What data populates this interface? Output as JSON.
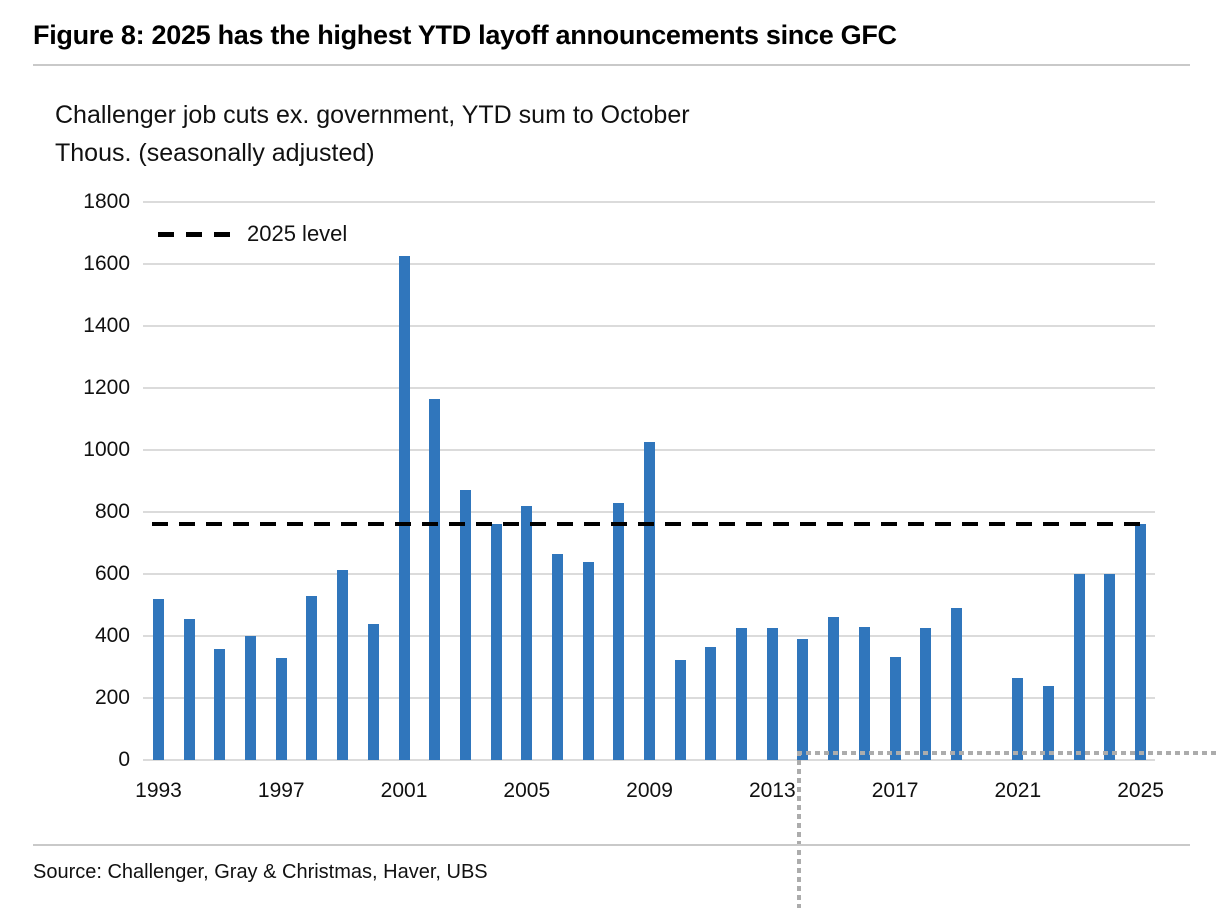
{
  "figure": {
    "title": "Figure 8: 2025 has the highest YTD layoff announcements since GFC",
    "subtitle_line1": "Challenger job cuts ex. government, YTD sum to October",
    "subtitle_line2": "Thous. (seasonally adjusted)",
    "source": "Source: Challenger, Gray & Christmas, Haver, UBS"
  },
  "legend": {
    "label": "2025 level"
  },
  "colors": {
    "bar": "#3076bc",
    "gridline": "#dbdbdb",
    "rule": "#c9c9c9",
    "reference_line": "#000000",
    "crosshair_artifact": "#acacac"
  },
  "chart_data": {
    "type": "bar",
    "title": "Figure 8: 2025 has the highest YTD layoff announcements since GFC",
    "subtitle": "Challenger job cuts ex. government, YTD sum to October",
    "ylabel": "Thous. (seasonally adjusted)",
    "categories": [
      1993,
      1994,
      1995,
      1996,
      1997,
      1998,
      1999,
      2000,
      2001,
      2002,
      2003,
      2004,
      2005,
      2006,
      2007,
      2008,
      2009,
      2010,
      2011,
      2012,
      2013,
      2014,
      2015,
      2016,
      2017,
      2018,
      2019,
      2020,
      2021,
      2022,
      2023,
      2024,
      2025
    ],
    "values": [
      520,
      455,
      357,
      400,
      330,
      530,
      612,
      440,
      1625,
      1163,
      872,
      762,
      818,
      665,
      638,
      830,
      1025,
      324,
      365,
      427,
      425,
      390,
      461,
      430,
      331,
      427,
      489,
      null,
      266,
      240,
      601,
      600,
      762
    ],
    "x_tick_labels": [
      "1993",
      "1997",
      "2001",
      "2005",
      "2009",
      "2013",
      "2017",
      "2021",
      "2025"
    ],
    "x_tick_years": [
      1993,
      1997,
      2001,
      2005,
      2009,
      2013,
      2017,
      2021,
      2025
    ],
    "y_tick_labels": [
      "0",
      "200",
      "400",
      "600",
      "800",
      "1000",
      "1200",
      "1400",
      "1600",
      "1800"
    ],
    "ylim": [
      0,
      1800
    ],
    "ytick_step": 200,
    "grid": "horizontal",
    "legend_position": "top-left-inside",
    "reference_line": {
      "label": "2025 level",
      "value": 762,
      "style": "dashed",
      "color": "#000000"
    }
  }
}
